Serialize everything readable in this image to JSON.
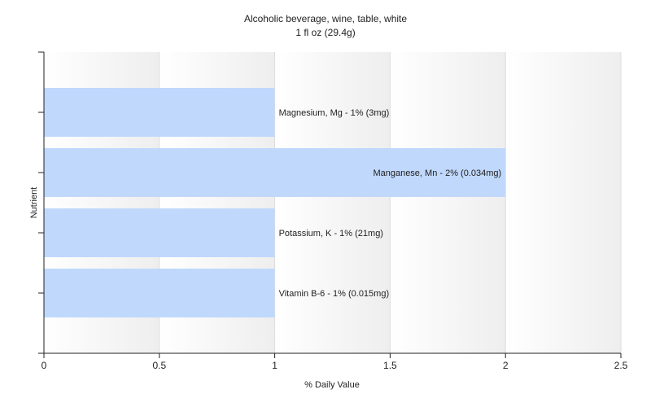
{
  "chart_data": {
    "type": "bar",
    "orientation": "horizontal",
    "title": "Alcoholic beverage, wine, table, white",
    "subtitle": "1 fl oz (29.4g)",
    "xlabel": "% Daily Value",
    "ylabel": "Nutrient",
    "xlim": [
      0,
      2.5
    ],
    "xticks": [
      0,
      0.5,
      1,
      1.5,
      2,
      2.5
    ],
    "grid": true,
    "categories": [
      "Magnesium, Mg",
      "Manganese, Mn",
      "Potassium, K",
      "Vitamin B-6"
    ],
    "values": [
      1,
      2,
      1,
      1
    ],
    "labels": [
      "Magnesium, Mg - 1% (3mg)",
      "Manganese, Mn - 2% (0.034mg)",
      "Potassium, K - 1% (21mg)",
      "Vitamin B-6 - 1% (0.015mg)"
    ],
    "bar_color": "#c0d8fb"
  }
}
